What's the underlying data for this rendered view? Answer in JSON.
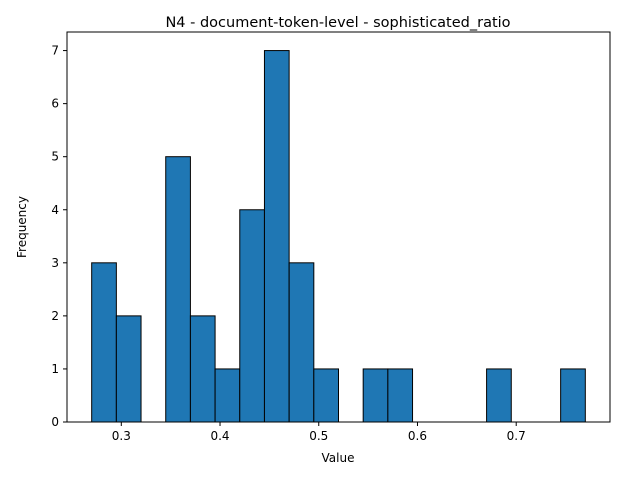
{
  "chart_data": {
    "type": "bar",
    "title": "N4 - document-token-level - sophisticated_ratio",
    "xlabel": "Value",
    "ylabel": "Frequency",
    "xlim": [
      0.245,
      0.795
    ],
    "ylim": [
      0,
      7.35
    ],
    "bins": [
      {
        "x0": 0.27,
        "x1": 0.295,
        "count": 3
      },
      {
        "x0": 0.295,
        "x1": 0.32,
        "count": 2
      },
      {
        "x0": 0.32,
        "x1": 0.345,
        "count": 0
      },
      {
        "x0": 0.345,
        "x1": 0.37,
        "count": 5
      },
      {
        "x0": 0.37,
        "x1": 0.395,
        "count": 2
      },
      {
        "x0": 0.395,
        "x1": 0.42,
        "count": 1
      },
      {
        "x0": 0.42,
        "x1": 0.445,
        "count": 4
      },
      {
        "x0": 0.445,
        "x1": 0.47,
        "count": 7
      },
      {
        "x0": 0.47,
        "x1": 0.495,
        "count": 3
      },
      {
        "x0": 0.495,
        "x1": 0.52,
        "count": 1
      },
      {
        "x0": 0.52,
        "x1": 0.545,
        "count": 0
      },
      {
        "x0": 0.545,
        "x1": 0.57,
        "count": 1
      },
      {
        "x0": 0.57,
        "x1": 0.595,
        "count": 1
      },
      {
        "x0": 0.595,
        "x1": 0.62,
        "count": 0
      },
      {
        "x0": 0.62,
        "x1": 0.645,
        "count": 0
      },
      {
        "x0": 0.645,
        "x1": 0.67,
        "count": 0
      },
      {
        "x0": 0.67,
        "x1": 0.695,
        "count": 1
      },
      {
        "x0": 0.695,
        "x1": 0.72,
        "count": 0
      },
      {
        "x0": 0.72,
        "x1": 0.745,
        "count": 0
      },
      {
        "x0": 0.745,
        "x1": 0.77,
        "count": 1
      }
    ],
    "xticks": [
      {
        "value": 0.3,
        "label": "0.3"
      },
      {
        "value": 0.4,
        "label": "0.4"
      },
      {
        "value": 0.5,
        "label": "0.5"
      },
      {
        "value": 0.6,
        "label": "0.6"
      },
      {
        "value": 0.7,
        "label": "0.7"
      }
    ],
    "yticks": [
      {
        "value": 0,
        "label": "0"
      },
      {
        "value": 1,
        "label": "1"
      },
      {
        "value": 2,
        "label": "2"
      },
      {
        "value": 3,
        "label": "3"
      },
      {
        "value": 4,
        "label": "4"
      },
      {
        "value": 5,
        "label": "5"
      },
      {
        "value": 6,
        "label": "6"
      },
      {
        "value": 7,
        "label": "7"
      }
    ],
    "grid": false,
    "colors": {
      "bar_fill": "#1f77b4",
      "bar_edge": "#000000"
    }
  }
}
